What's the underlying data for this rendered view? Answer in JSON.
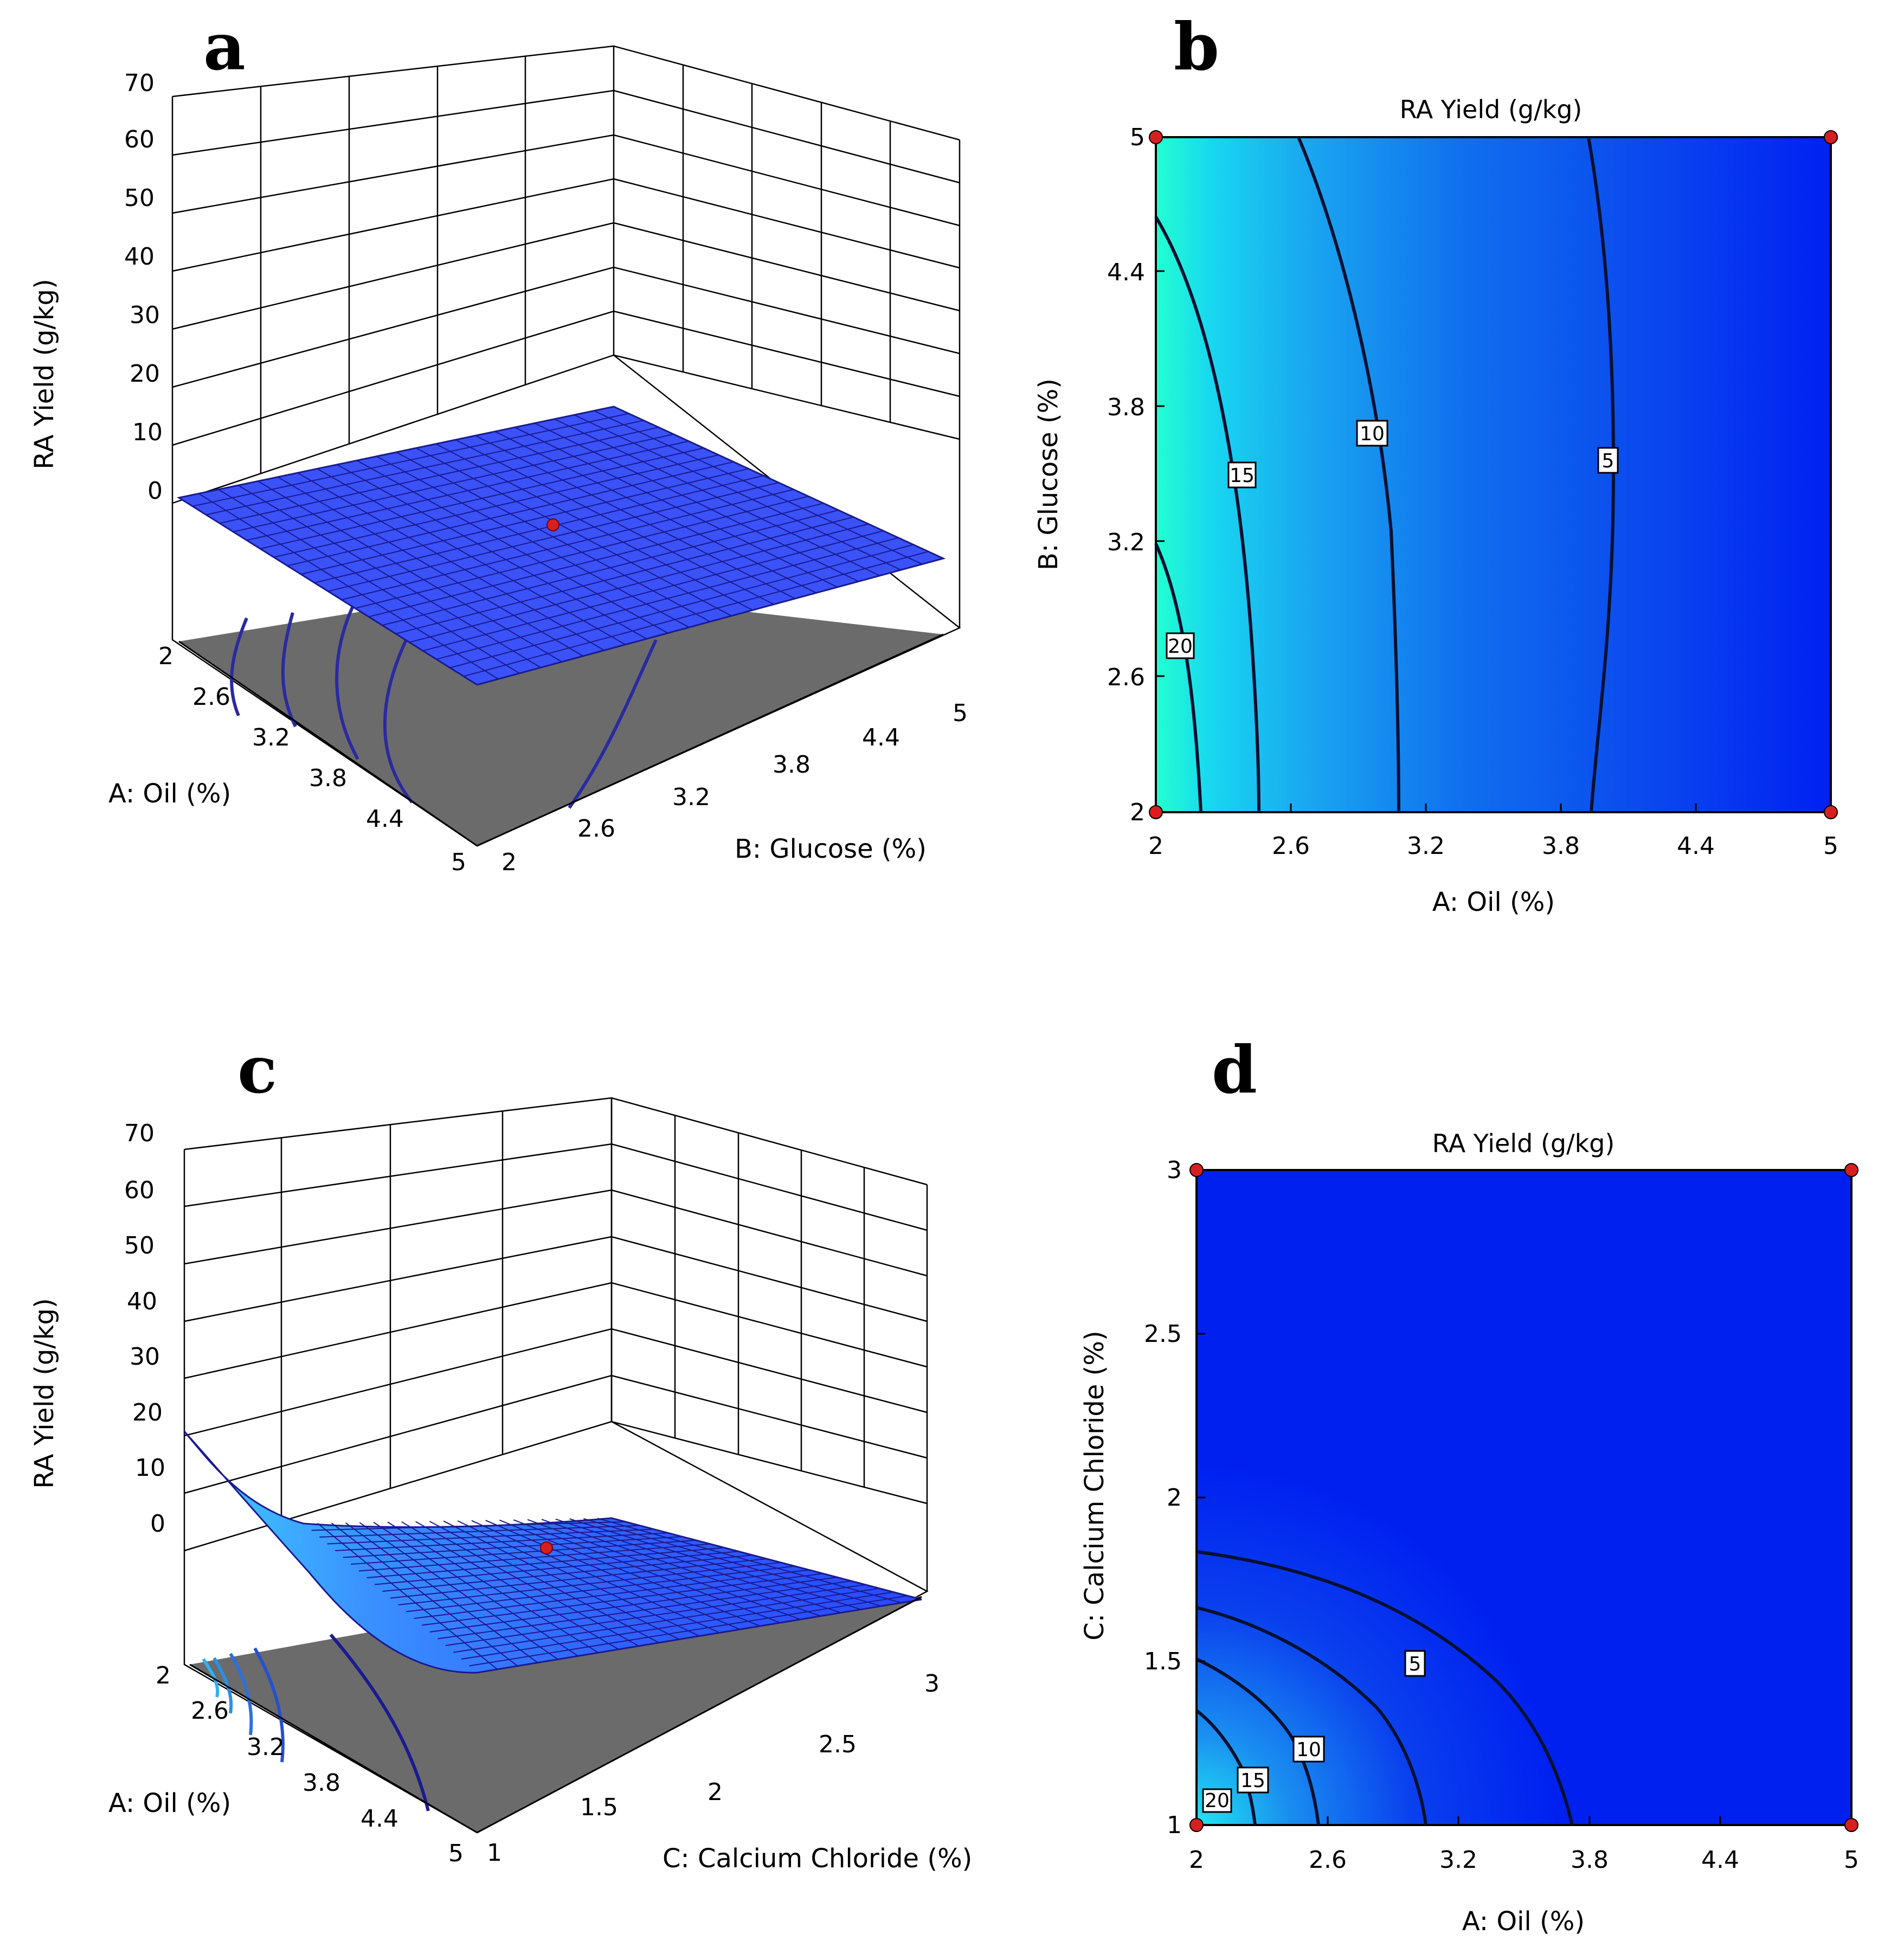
{
  "chart_data": [
    {
      "panel": "a",
      "type": "surface3d",
      "zlabel": "RA Yield (g/kg)",
      "xlabel": "A: Oil (%)",
      "ylabel": "B: Glucose (%)",
      "zticks": [
        "0",
        "10",
        "20",
        "30",
        "40",
        "50",
        "60",
        "70"
      ],
      "xticks": [
        "2",
        "2.6",
        "3.2",
        "3.8",
        "4.4",
        "5"
      ],
      "yticks": [
        "2",
        "2.6",
        "3.2",
        "3.8",
        "4.4",
        "5"
      ],
      "zlim": [
        0,
        70
      ],
      "surface_range": [
        0,
        21
      ],
      "design_point": {
        "A": 3.5,
        "B": 3.5
      }
    },
    {
      "panel": "b",
      "type": "contour",
      "title": "RA Yield (g/kg)",
      "xlabel": "A: Oil (%)",
      "ylabel": "B: Glucose (%)",
      "xticks": [
        "2",
        "2.6",
        "3.2",
        "3.8",
        "4.4",
        "5"
      ],
      "yticks": [
        "2",
        "2.6",
        "3.2",
        "3.8",
        "4.4",
        "5"
      ],
      "xlim": [
        2,
        5
      ],
      "ylim": [
        2,
        5
      ],
      "contour_levels": [
        {
          "level": 20,
          "label": "20"
        },
        {
          "level": 15,
          "label": "15"
        },
        {
          "level": 10,
          "label": "10"
        },
        {
          "level": 5,
          "label": "5"
        }
      ],
      "design_points": [
        [
          2,
          2
        ],
        [
          2,
          5
        ],
        [
          5,
          2
        ],
        [
          5,
          5
        ]
      ]
    },
    {
      "panel": "c",
      "type": "surface3d",
      "zlabel": "RA Yield (g/kg)",
      "xlabel": "A: Oil (%)",
      "ylabel": "C: Calcium Chloride (%)",
      "zticks": [
        "0",
        "10",
        "20",
        "30",
        "40",
        "50",
        "60",
        "70"
      ],
      "xticks": [
        "2",
        "2.6",
        "3.2",
        "3.8",
        "4.4",
        "5"
      ],
      "yticks": [
        "1",
        "1.5",
        "2",
        "2.5",
        "3"
      ],
      "zlim": [
        0,
        70
      ],
      "surface_range": [
        0,
        16
      ],
      "design_point": {
        "A": 3.5,
        "C": 2
      }
    },
    {
      "panel": "d",
      "type": "contour",
      "title": "RA Yield (g/kg)",
      "xlabel": "A: Oil (%)",
      "ylabel": "C: Calcium Chloride (%)",
      "xticks": [
        "2",
        "2.6",
        "3.2",
        "3.8",
        "4.4",
        "5"
      ],
      "yticks": [
        "1",
        "1.5",
        "2",
        "2.5",
        "3"
      ],
      "xlim": [
        2,
        5
      ],
      "ylim": [
        1,
        3
      ],
      "contour_levels": [
        {
          "level": 20,
          "label": "20"
        },
        {
          "level": 15,
          "label": "15"
        },
        {
          "level": 10,
          "label": "10"
        },
        {
          "level": 5,
          "label": "5"
        }
      ],
      "design_points": [
        [
          2,
          1
        ],
        [
          2,
          3
        ],
        [
          5,
          1
        ],
        [
          5,
          3
        ]
      ]
    }
  ]
}
